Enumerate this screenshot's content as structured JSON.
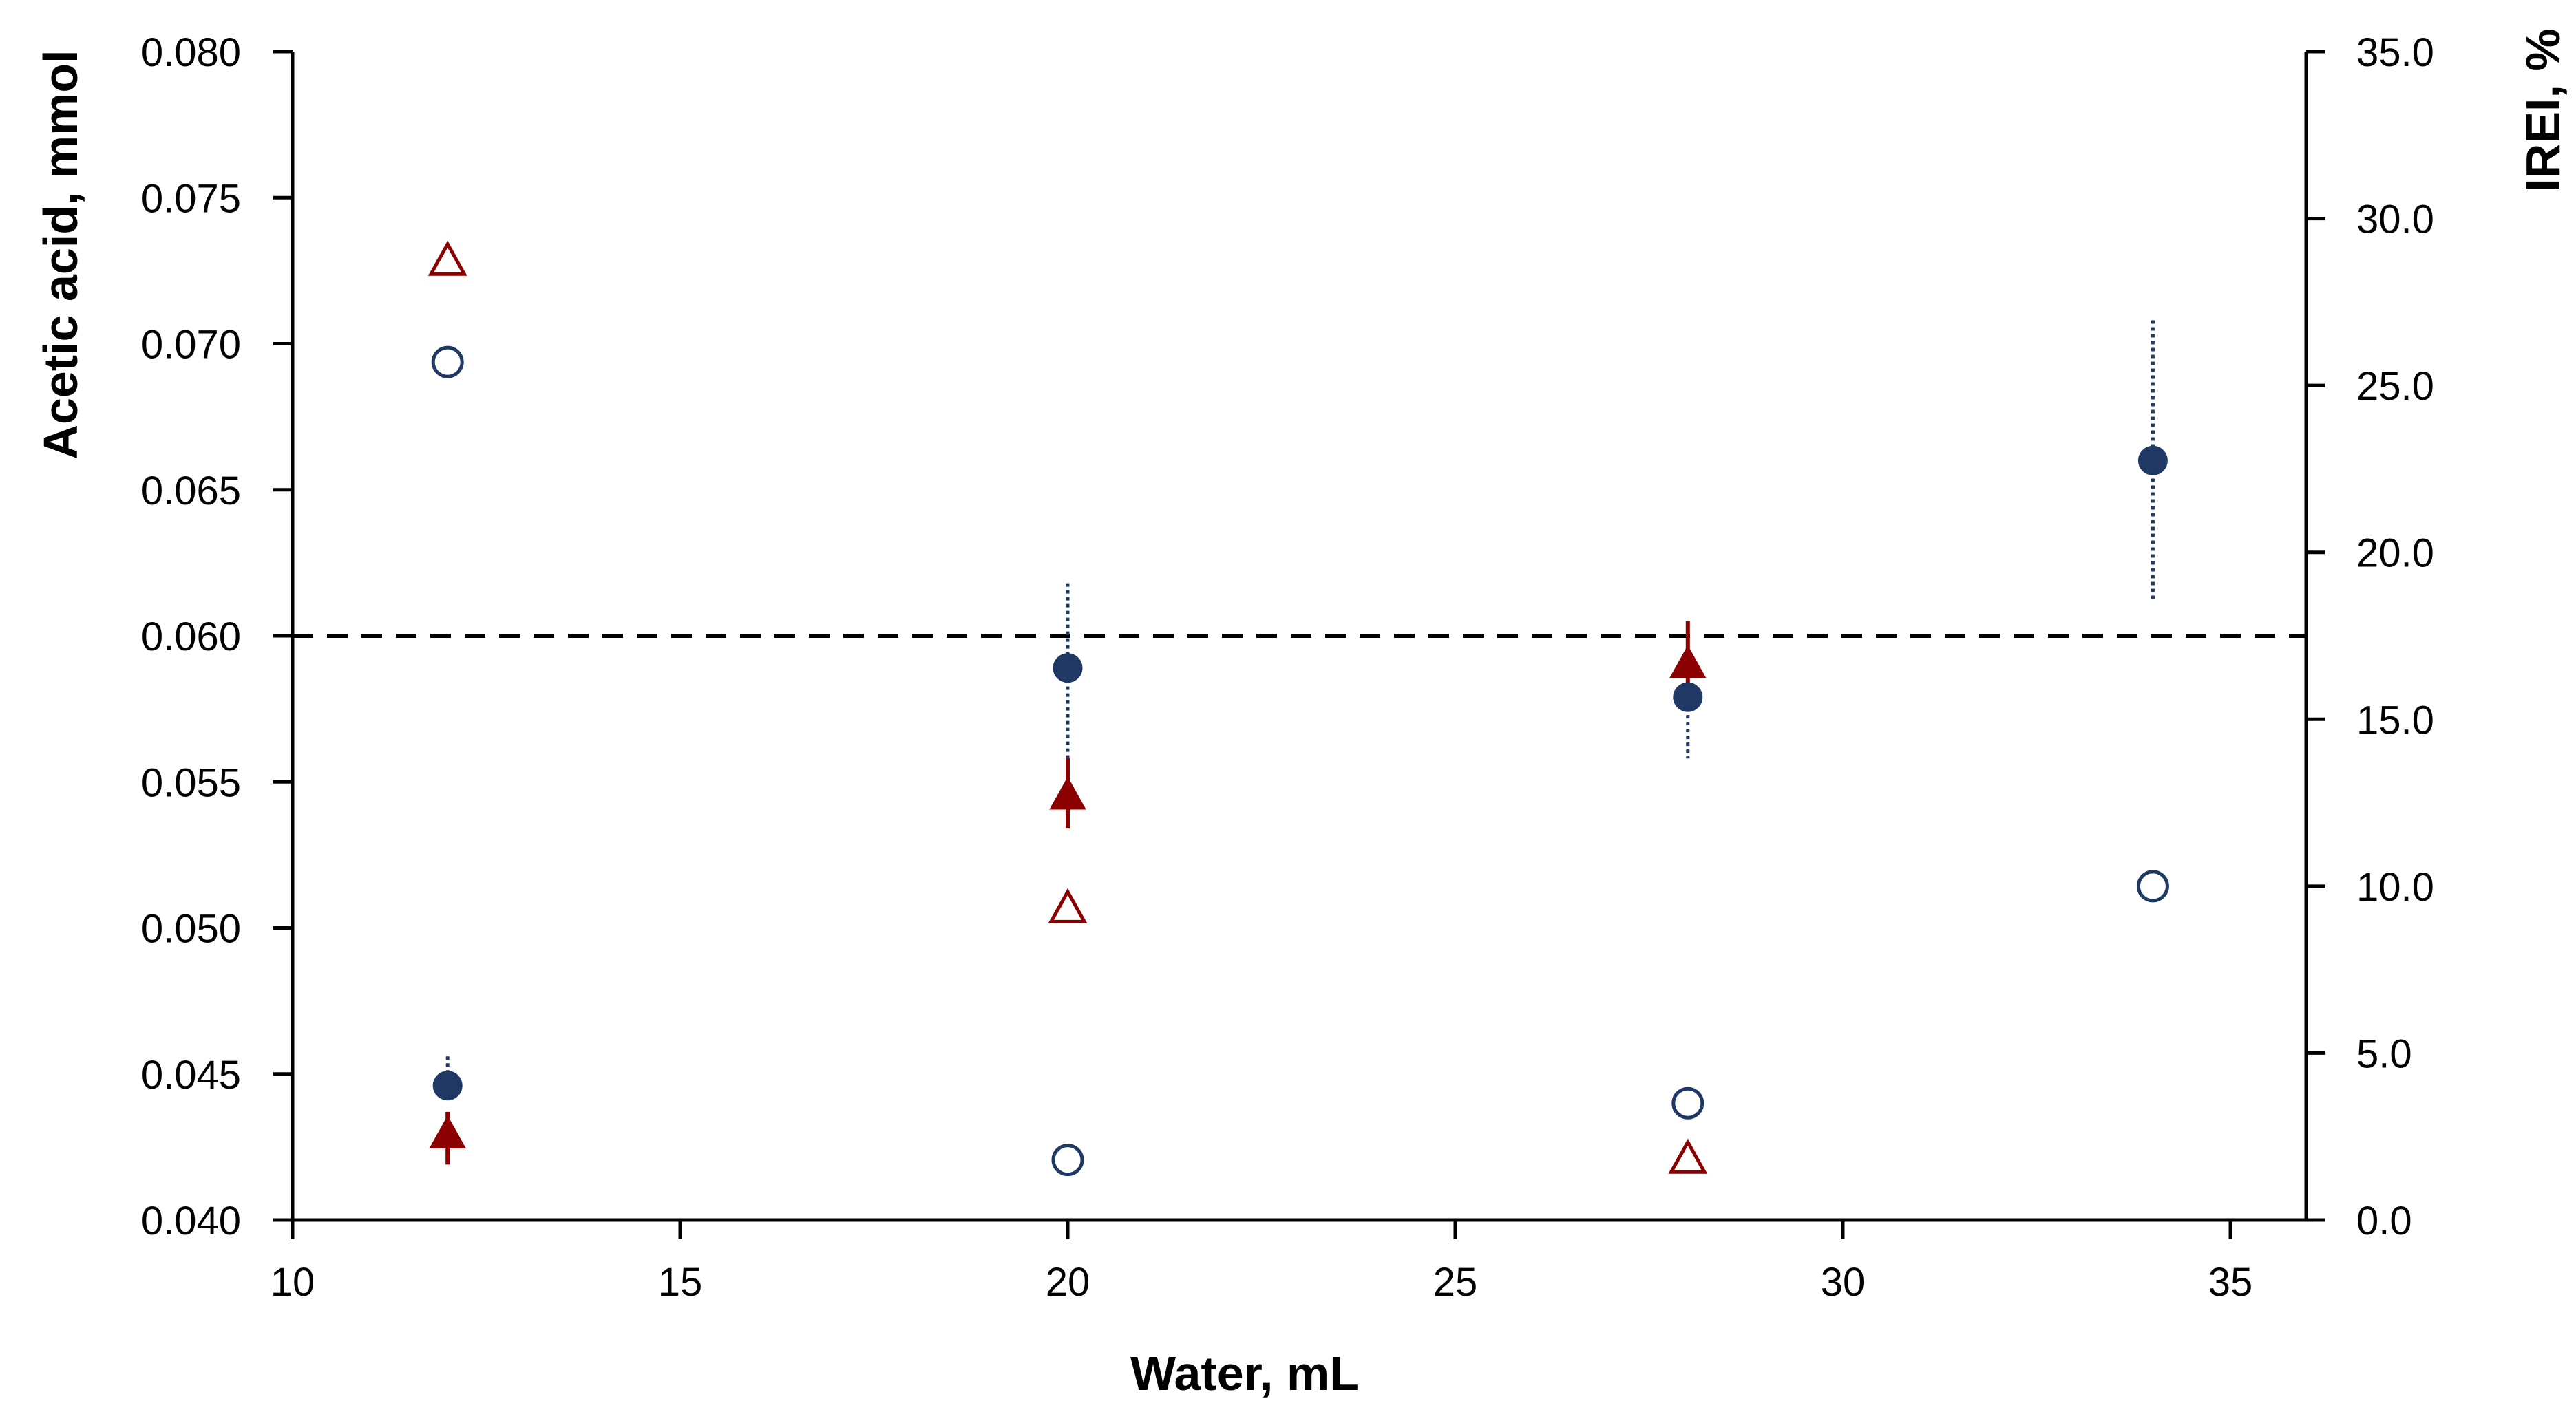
{
  "chart_data": {
    "type": "scatter",
    "title": "",
    "xlabel": "Water, mL",
    "ylabel": "Acetic acid, mmol",
    "y2label": "IREI, %",
    "xlim": [
      10,
      36
    ],
    "ylim": [
      0.04,
      0.08
    ],
    "y2lim": [
      0.0,
      35.0
    ],
    "xticks": [
      "10",
      "15",
      "20",
      "25",
      "30",
      "35"
    ],
    "yticks": [
      "0.040",
      "0.045",
      "0.050",
      "0.055",
      "0.060",
      "0.065",
      "0.070",
      "0.075",
      "0.080"
    ],
    "y2ticks": [
      "0.0",
      "5.0",
      "10.0",
      "15.0",
      "20.0",
      "25.0",
      "30.0",
      "35.0"
    ],
    "grid": false,
    "reference_line": {
      "axis": "y",
      "value": 0.06,
      "style": "dashed",
      "color": "#000000"
    },
    "colors": {
      "navy": "#1f3864",
      "darkred": "#8b0000"
    },
    "series": [
      {
        "name": "Acetic acid (filled circle)",
        "axis": "y",
        "marker": "circle",
        "filled": true,
        "color": "#1f3864",
        "error_style": "dotted",
        "points": [
          {
            "x": 12,
            "y": 0.0446,
            "err_low": 0.0443,
            "err_high": 0.0456
          },
          {
            "x": 20,
            "y": 0.0589,
            "err_low": 0.0555,
            "err_high": 0.0618
          },
          {
            "x": 28,
            "y": 0.0579,
            "err_low": 0.0558,
            "err_high": 0.0587
          },
          {
            "x": 34,
            "y": 0.066,
            "err_low": 0.0612,
            "err_high": 0.0708
          }
        ]
      },
      {
        "name": "Acetic acid (filled triangle)",
        "axis": "y",
        "marker": "triangle",
        "filled": true,
        "color": "#8b0000",
        "error_style": "solid",
        "points": [
          {
            "x": 12,
            "y": 0.0429,
            "err_low": 0.0419,
            "err_high": 0.0437
          },
          {
            "x": 20,
            "y": 0.0545,
            "err_low": 0.0534,
            "err_high": 0.0558
          },
          {
            "x": 28,
            "y": 0.059,
            "err_low": 0.0583,
            "err_high": 0.0605
          }
        ]
      },
      {
        "name": "IREI (open circle)",
        "axis": "y2",
        "marker": "circle",
        "filled": false,
        "color": "#1f3864",
        "points": [
          {
            "x": 12,
            "y": 25.7
          },
          {
            "x": 20,
            "y": 1.8
          },
          {
            "x": 28,
            "y": 3.5
          },
          {
            "x": 34,
            "y": 10.0
          }
        ]
      },
      {
        "name": "IREI (open triangle)",
        "axis": "y2",
        "marker": "triangle",
        "filled": false,
        "color": "#8b0000",
        "points": [
          {
            "x": 12,
            "y": 28.7
          },
          {
            "x": 20,
            "y": 9.3
          },
          {
            "x": 28,
            "y": 1.8
          }
        ]
      }
    ]
  }
}
